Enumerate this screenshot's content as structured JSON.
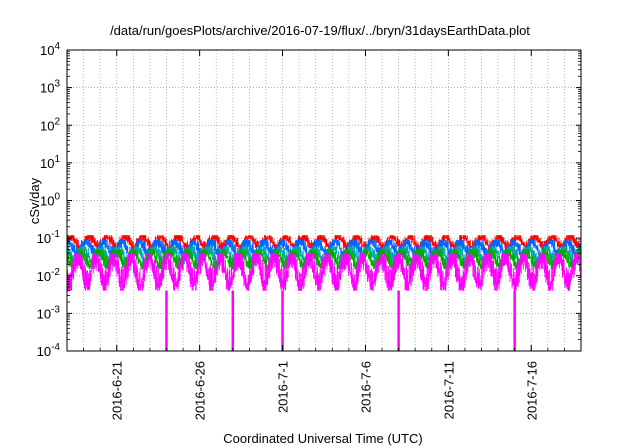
{
  "chart_data": {
    "type": "line",
    "title": "/data/run/goesPlots/archive/2016-07-19/flux/../bryn/31daysEarthData.plot",
    "xlabel": "Coordinated Universal Time (UTC)",
    "ylabel": "cSv/day",
    "yscale": "log",
    "ylim": [
      0.0001,
      10000
    ],
    "y_ticks": [
      {
        "value": 0.0001,
        "base": "10",
        "exp": "-4"
      },
      {
        "value": 0.001,
        "base": "10",
        "exp": "-3"
      },
      {
        "value": 0.01,
        "base": "10",
        "exp": "-2"
      },
      {
        "value": 0.1,
        "base": "10",
        "exp": "-1"
      },
      {
        "value": 1,
        "base": "10",
        "exp": "0"
      },
      {
        "value": 10,
        "base": "10",
        "exp": "1"
      },
      {
        "value": 100,
        "base": "10",
        "exp": "2"
      },
      {
        "value": 1000,
        "base": "10",
        "exp": "3"
      },
      {
        "value": 10000,
        "base": "10",
        "exp": "4"
      }
    ],
    "xlim": [
      "2016-06-18",
      "2016-07-19"
    ],
    "x_ticks": [
      "2016-6-21",
      "2016-6-26",
      "2016-7-1",
      "2016-7-6",
      "2016-7-11",
      "2016-7-16"
    ],
    "x_tick_dates": [
      "2016-06-21",
      "2016-06-26",
      "2016-07-01",
      "2016-07-06",
      "2016-07-11",
      "2016-07-16"
    ],
    "grid": true,
    "series": [
      {
        "color": "#ff0000",
        "typical_range": [
          0.05,
          0.12
        ]
      },
      {
        "color": "#0066ff",
        "typical_range": [
          0.03,
          0.09
        ]
      },
      {
        "color": "#00aaaa",
        "typical_range": [
          0.02,
          0.06
        ]
      },
      {
        "color": "#00aa00",
        "typical_range": [
          0.015,
          0.05
        ]
      },
      {
        "color": "#ff00ff",
        "typical_range": [
          0.004,
          0.04
        ]
      }
    ],
    "dropouts": [
      "2016-06-24",
      "2016-06-28",
      "2016-07-01",
      "2016-07-08",
      "2016-07-15"
    ]
  }
}
